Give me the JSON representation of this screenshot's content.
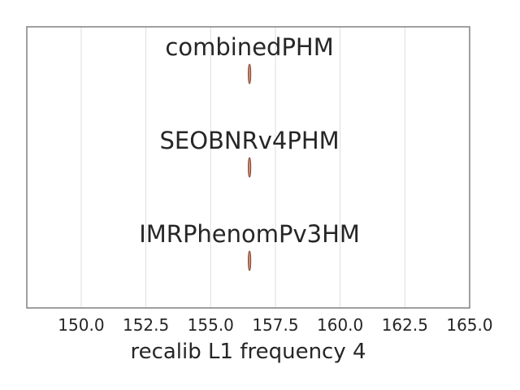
{
  "chart_data": {
    "type": "violin",
    "xlabel": "recalib L1 frequency 4",
    "xlim": [
      147.9,
      165.0
    ],
    "xticks": [
      150.0,
      152.5,
      155.0,
      157.5,
      160.0,
      162.5,
      165.0
    ],
    "xtick_labels": [
      "150.0",
      "152.5",
      "155.0",
      "157.5",
      "160.0",
      "162.5",
      "165.0"
    ],
    "grid": "vertical",
    "series": [
      {
        "name": "combinedPHM",
        "center": 156.5,
        "min": 156.45,
        "max": 156.55
      },
      {
        "name": "SEOBNRv4PHM",
        "center": 156.5,
        "min": 156.45,
        "max": 156.55
      },
      {
        "name": "IMRPhenomPv3HM",
        "center": 156.5,
        "min": 156.45,
        "max": 156.55
      }
    ],
    "colors": {
      "violin_fill": "#c98d75",
      "violin_edge": "#8a4a3a",
      "grid": "#dddddd",
      "frame": "#808080"
    }
  }
}
